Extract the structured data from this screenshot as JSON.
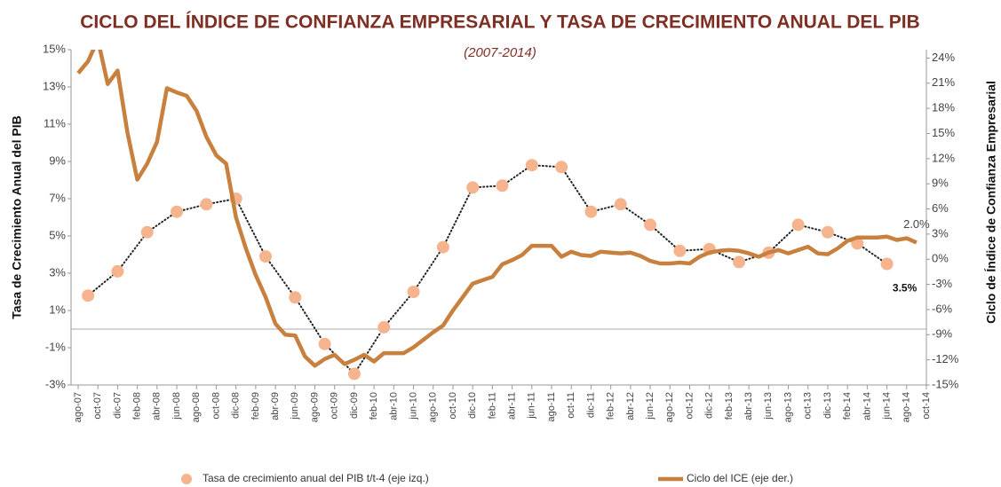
{
  "chart_data": {
    "type": "line",
    "title": "CICLO DEL ÍNDICE DE CONFIANZA EMPRESARIAL Y TASA DE CRECIMIENTO ANUAL DEL PIB",
    "subtitle": "(2007-2014)",
    "ylabel": "Tasa de Crecimiento Anual del PIB",
    "y2label": "Ciclo de Índice de Confianza Empresarial",
    "categories": [
      "ago-07",
      null,
      "oct-07",
      null,
      "dic-07",
      null,
      "feb-08",
      null,
      "abr-08",
      null,
      "jun-08",
      null,
      "ago-08",
      null,
      "oct-08",
      null,
      "dic-08",
      null,
      "feb-09",
      null,
      "abr-09",
      null,
      "jun-09",
      null,
      "ago-09",
      null,
      "oct-09",
      null,
      "dic-09",
      null,
      "feb-10",
      null,
      "abr-10",
      null,
      "jun-10",
      null,
      "ago-10",
      null,
      "oct-10",
      null,
      "dic-10",
      null,
      "feb-11",
      null,
      "abr-11",
      null,
      "jun-11",
      null,
      "ago-11",
      null,
      "oct-11",
      null,
      "dic-11",
      null,
      "feb-12",
      null,
      "abr-12",
      null,
      "jun-12",
      null,
      "ago-12",
      null,
      "oct-12",
      null,
      "dic-12",
      null,
      "feb-13",
      null,
      "abr-13",
      null,
      "jun-13",
      null,
      "ago-13",
      null,
      "oct-13",
      null,
      "dic-13",
      null,
      "feb-14",
      null,
      "abr-14",
      null,
      "jun-14",
      null,
      "ago-14",
      null,
      "oct-14"
    ],
    "ylim": [
      -3,
      15
    ],
    "yticks": [
      {
        "value": -3,
        "label": "-3%"
      },
      {
        "value": -1,
        "label": "-1%"
      },
      {
        "value": 1,
        "label": "1%"
      },
      {
        "value": 3,
        "label": "3%"
      },
      {
        "value": 5,
        "label": "5%"
      },
      {
        "value": 7,
        "label": "7%"
      },
      {
        "value": 9,
        "label": "9%"
      },
      {
        "value": 11,
        "label": "11%"
      },
      {
        "value": 13,
        "label": "13%"
      },
      {
        "value": 15,
        "label": "15%"
      }
    ],
    "y2lim": [
      -15,
      25
    ],
    "y2ticks": [
      {
        "value": -15,
        "label": "-15%"
      },
      {
        "value": -12,
        "label": "-12%"
      },
      {
        "value": -9,
        "label": "-9%"
      },
      {
        "value": -6,
        "label": "-6%"
      },
      {
        "value": -3,
        "label": "-3%"
      },
      {
        "value": 0,
        "label": "0%"
      },
      {
        "value": 3,
        "label": "3%"
      },
      {
        "value": 6,
        "label": "6%"
      },
      {
        "value": 9,
        "label": "9%"
      },
      {
        "value": 12,
        "label": "12%"
      },
      {
        "value": 15,
        "label": "15%"
      },
      {
        "value": 18,
        "label": "18%"
      },
      {
        "value": 21,
        "label": "21%"
      },
      {
        "value": 24,
        "label": "24%"
      }
    ],
    "hline": 0,
    "series": [
      {
        "name": "Tasa de crecimiento anual del PIB  t/t-4 (eje izq.)",
        "color": "#f6b48e",
        "marker": true,
        "dotted": true,
        "values": [
          null,
          1.8,
          null,
          null,
          3.1,
          null,
          null,
          5.2,
          null,
          null,
          6.3,
          null,
          null,
          6.7,
          null,
          null,
          7.0,
          null,
          null,
          3.9,
          null,
          null,
          1.7,
          null,
          null,
          -0.8,
          null,
          null,
          -2.4,
          null,
          null,
          0.1,
          null,
          null,
          2.0,
          null,
          null,
          4.4,
          null,
          null,
          7.6,
          null,
          null,
          7.7,
          null,
          null,
          8.8,
          null,
          null,
          8.7,
          null,
          null,
          6.3,
          null,
          null,
          6.7,
          null,
          null,
          5.6,
          null,
          null,
          4.2,
          null,
          null,
          4.3,
          null,
          null,
          3.6,
          null,
          null,
          4.1,
          null,
          null,
          5.6,
          null,
          null,
          5.2,
          null,
          null,
          4.6,
          null,
          null,
          3.5,
          null,
          null,
          null,
          null
        ],
        "value_labels": [
          null,
          null,
          null,
          null,
          null,
          null,
          null,
          null,
          null,
          null,
          null,
          null,
          null,
          null,
          null,
          null,
          null,
          null,
          null,
          null,
          null,
          null,
          null,
          null,
          null,
          null,
          null,
          null,
          null,
          null,
          null,
          null,
          null,
          null,
          null,
          null,
          null,
          null,
          null,
          null,
          null,
          null,
          null,
          null,
          null,
          null,
          null,
          null,
          null,
          null,
          null,
          null,
          null,
          null,
          null,
          null,
          null,
          null,
          null,
          null,
          null,
          null,
          null,
          null,
          null,
          null,
          null,
          null,
          null,
          null,
          null,
          null,
          null,
          null,
          null,
          null,
          null,
          null,
          null,
          null,
          null,
          null,
          "3.5%",
          null,
          null,
          null,
          null
        ]
      },
      {
        "name": "Ciclo del ICE (eje der.)",
        "color": "#c8803f",
        "axis": "y2",
        "values": [
          22.2,
          23.6,
          26.2,
          20.9,
          22.5,
          15.1,
          9.5,
          11.4,
          14.0,
          20.4,
          19.9,
          19.5,
          17.7,
          14.6,
          12.4,
          11.4,
          5.0,
          1.3,
          -1.9,
          -4.5,
          -7.7,
          -9.0,
          -9.1,
          -11.6,
          -12.7,
          -11.9,
          -11.4,
          -12.5,
          -12.0,
          -11.4,
          -12.2,
          -11.2,
          -11.2,
          -11.2,
          -10.5,
          -9.6,
          -8.7,
          -7.9,
          -6.1,
          -4.5,
          -2.9,
          -2.5,
          -2.1,
          -0.6,
          -0.1,
          0.5,
          1.6,
          1.6,
          1.6,
          0.3,
          0.9,
          0.5,
          0.4,
          0.9,
          0.8,
          0.7,
          0.8,
          0.4,
          -0.2,
          -0.5,
          -0.5,
          -0.4,
          -0.5,
          0.3,
          0.8,
          1.0,
          1.1,
          1.0,
          0.7,
          0.3,
          0.8,
          1.1,
          0.7,
          1.1,
          1.5,
          0.7,
          0.6,
          1.3,
          2.2,
          2.6,
          2.6,
          2.6,
          2.7,
          2.3,
          2.5,
          2.0,
          null
        ],
        "value_labels": [
          null,
          null,
          null,
          null,
          null,
          null,
          null,
          null,
          null,
          null,
          null,
          null,
          null,
          null,
          null,
          null,
          null,
          null,
          null,
          null,
          null,
          null,
          null,
          null,
          null,
          null,
          null,
          null,
          null,
          null,
          null,
          null,
          null,
          null,
          null,
          null,
          null,
          null,
          null,
          null,
          null,
          null,
          null,
          null,
          null,
          null,
          null,
          null,
          null,
          null,
          null,
          null,
          null,
          null,
          null,
          null,
          null,
          null,
          null,
          null,
          null,
          null,
          null,
          null,
          null,
          null,
          null,
          null,
          null,
          null,
          null,
          null,
          null,
          null,
          null,
          null,
          null,
          null,
          null,
          null,
          null,
          null,
          null,
          null,
          null,
          "2.0%",
          null
        ]
      }
    ]
  }
}
